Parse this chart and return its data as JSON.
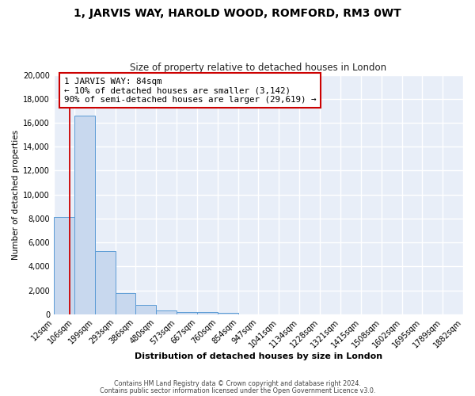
{
  "title": "1, JARVIS WAY, HAROLD WOOD, ROMFORD, RM3 0WT",
  "subtitle": "Size of property relative to detached houses in London",
  "xlabel": "Distribution of detached houses by size in London",
  "ylabel": "Number of detached properties",
  "bar_color": "#c8d8ee",
  "bar_edge_color": "#5b9bd5",
  "background_color": "#e8eef8",
  "grid_color": "#ffffff",
  "red_line_x": 84,
  "annotation_text_line1": "1 JARVIS WAY: 84sqm",
  "annotation_text_line2": "← 10% of detached houses are smaller (3,142)",
  "annotation_text_line3": "90% of semi-detached houses are larger (29,619) →",
  "bin_edges": [
    12,
    106,
    199,
    293,
    386,
    480,
    573,
    667,
    760,
    854,
    947,
    1041,
    1134,
    1228,
    1321,
    1415,
    1508,
    1602,
    1695,
    1789,
    1882
  ],
  "bin_counts": [
    8100,
    16600,
    5300,
    1750,
    800,
    280,
    190,
    150,
    90,
    0,
    0,
    0,
    0,
    0,
    0,
    0,
    0,
    0,
    0,
    0
  ],
  "ylim": [
    0,
    20000
  ],
  "yticks": [
    0,
    2000,
    4000,
    6000,
    8000,
    10000,
    12000,
    14000,
    16000,
    18000,
    20000
  ],
  "footer_line1": "Contains HM Land Registry data © Crown copyright and database right 2024.",
  "footer_line2": "Contains public sector information licensed under the Open Government Licence v3.0."
}
